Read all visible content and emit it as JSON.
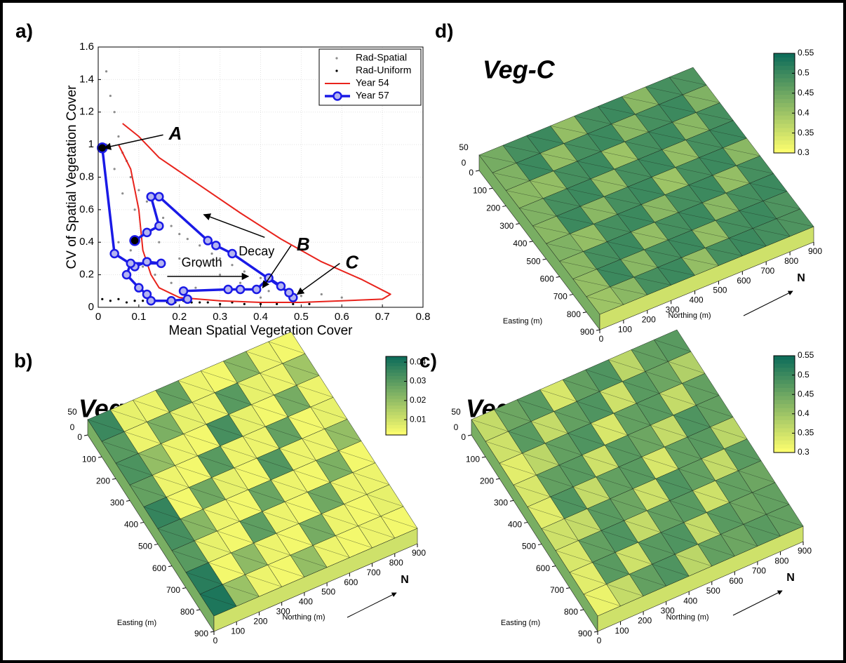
{
  "chart_data": [
    {
      "type": "line",
      "panel_label": "a)",
      "xlabel": "Mean Spatial Vegetation Cover",
      "ylabel": "CV of Spatial Vegetation Cover",
      "xlim": [
        0,
        0.8
      ],
      "xticks": [
        0,
        0.1,
        0.2,
        0.3,
        0.4,
        0.5,
        0.6,
        0.7,
        0.8
      ],
      "ylim": [
        0,
        1.6
      ],
      "yticks": [
        0,
        0.2,
        0.4,
        0.6,
        0.8,
        1,
        1.2,
        1.4,
        1.6
      ],
      "grid": true,
      "legend": "upper right",
      "series": [
        {
          "name": "Rad-Spatial",
          "color": "#8c8c8c",
          "style": "dots",
          "x": [
            0.02,
            0.03,
            0.04,
            0.05,
            0.06,
            0.07,
            0.08,
            0.1,
            0.12,
            0.14,
            0.16,
            0.18,
            0.2,
            0.22,
            0.25,
            0.28,
            0.3,
            0.33,
            0.36,
            0.4,
            0.45,
            0.5,
            0.55,
            0.6,
            0.02,
            0.04,
            0.06,
            0.09,
            0.12,
            0.15,
            0.2,
            0.25,
            0.3,
            0.35,
            0.42,
            0.5,
            0.03,
            0.05,
            0.08,
            0.11,
            0.14,
            0.18,
            0.24,
            0.32,
            0.4
          ],
          "values": [
            1.45,
            1.3,
            1.2,
            1.05,
            0.95,
            0.9,
            0.8,
            0.72,
            0.65,
            0.6,
            0.55,
            0.5,
            0.45,
            0.42,
            0.38,
            0.33,
            0.3,
            0.26,
            0.22,
            0.18,
            0.14,
            0.1,
            0.08,
            0.06,
            1.0,
            0.85,
            0.7,
            0.6,
            0.45,
            0.4,
            0.3,
            0.25,
            0.2,
            0.15,
            0.1,
            0.07,
            0.55,
            0.4,
            0.35,
            0.25,
            0.2,
            0.15,
            0.12,
            0.1,
            0.06
          ]
        },
        {
          "name": "Rad-Uniform",
          "color": "#000000",
          "style": "dots",
          "x": [
            0.01,
            0.03,
            0.05,
            0.07,
            0.09,
            0.11,
            0.13,
            0.15,
            0.17,
            0.19,
            0.21,
            0.23,
            0.25,
            0.27,
            0.3,
            0.33,
            0.36,
            0.4,
            0.44,
            0.48,
            0.52
          ],
          "values": [
            0.05,
            0.04,
            0.05,
            0.03,
            0.04,
            0.04,
            0.03,
            0.04,
            0.03,
            0.03,
            0.04,
            0.03,
            0.03,
            0.03,
            0.02,
            0.03,
            0.02,
            0.02,
            0.02,
            0.02,
            0.02
          ]
        },
        {
          "name": "Year 54",
          "color": "#e8231c",
          "style": "line",
          "x": [
            0.06,
            0.1,
            0.15,
            0.25,
            0.35,
            0.45,
            0.55,
            0.65,
            0.72,
            0.7,
            0.6,
            0.5,
            0.4,
            0.3,
            0.2,
            0.15,
            0.13,
            0.11,
            0.1,
            0.08,
            0.05
          ],
          "values": [
            1.13,
            1.05,
            0.92,
            0.75,
            0.58,
            0.42,
            0.28,
            0.17,
            0.08,
            0.05,
            0.04,
            0.03,
            0.03,
            0.04,
            0.06,
            0.12,
            0.2,
            0.35,
            0.6,
            0.85,
            1.0
          ]
        },
        {
          "name": "Year 57",
          "color": "#1a1ae6",
          "marker_fill": "#b4b4f0",
          "endpoint_fill": "#000000",
          "style": "line-markers",
          "x": [
            0.01,
            0.04,
            0.09,
            0.12,
            0.155,
            0.08,
            0.07,
            0.1,
            0.12,
            0.13,
            0.18,
            0.22,
            0.21,
            0.32,
            0.35,
            0.39,
            0.42,
            0.45,
            0.48,
            0.47,
            0.33,
            0.29,
            0.27,
            0.15,
            0.13,
            0.15,
            0.12,
            0.09
          ],
          "values": [
            0.98,
            0.33,
            0.25,
            0.28,
            0.27,
            0.27,
            0.2,
            0.12,
            0.08,
            0.04,
            0.04,
            0.05,
            0.1,
            0.11,
            0.11,
            0.11,
            0.18,
            0.13,
            0.06,
            0.09,
            0.33,
            0.38,
            0.41,
            0.68,
            0.68,
            0.5,
            0.46,
            0.41
          ]
        }
      ],
      "annotations": [
        "A",
        "B",
        "C",
        "Decay",
        "Growth"
      ]
    },
    {
      "type": "surface",
      "panel_label": "b)",
      "title": "Veg-A",
      "xlabel": "Easting (m)",
      "ylabel": "Northing (m)",
      "xlim": [
        0,
        900
      ],
      "xticks": [
        0,
        100,
        200,
        300,
        400,
        500,
        600,
        700,
        800,
        900
      ],
      "ylim": [
        0,
        900
      ],
      "yticks": [
        0,
        100,
        200,
        300,
        400,
        500,
        600,
        700,
        800,
        900
      ],
      "zlim": [
        0,
        50
      ],
      "zticks": [
        0,
        50
      ],
      "north_label": "N",
      "clim": [
        0.002,
        0.043
      ],
      "cticks": [
        0.01,
        0.02,
        0.03,
        0.04
      ],
      "colors": [
        "#ffff6e",
        "#0b6b5a"
      ],
      "z": [
        [
          0.035,
          0.006,
          0.005,
          0.028,
          0.005,
          0.004,
          0.022,
          0.005,
          0.004
        ],
        [
          0.03,
          0.005,
          0.024,
          0.006,
          0.005,
          0.03,
          0.006,
          0.005,
          0.018
        ],
        [
          0.032,
          0.02,
          0.005,
          0.004,
          0.033,
          0.006,
          0.004,
          0.025,
          0.005
        ],
        [
          0.028,
          0.005,
          0.004,
          0.03,
          0.005,
          0.005,
          0.028,
          0.004,
          0.006
        ],
        [
          0.036,
          0.004,
          0.026,
          0.006,
          0.004,
          0.031,
          0.005,
          0.005,
          0.02
        ],
        [
          0.033,
          0.022,
          0.005,
          0.004,
          0.027,
          0.005,
          0.004,
          0.024,
          0.004
        ],
        [
          0.03,
          0.006,
          0.004,
          0.029,
          0.005,
          0.004,
          0.026,
          0.005,
          0.005
        ],
        [
          0.038,
          0.004,
          0.021,
          0.005,
          0.004,
          0.025,
          0.005,
          0.004,
          0.006
        ],
        [
          0.04,
          0.019,
          0.005,
          0.004,
          0.02,
          0.005,
          0.004,
          0.005,
          0.004
        ]
      ]
    },
    {
      "type": "surface",
      "panel_label": "c)",
      "title": "Veg-B",
      "xlabel": "Easting (m)",
      "ylabel": "Northing (m)",
      "xlim": [
        0,
        900
      ],
      "xticks": [
        0,
        100,
        200,
        300,
        400,
        500,
        600,
        700,
        800,
        900
      ],
      "ylim": [
        0,
        900
      ],
      "yticks": [
        0,
        100,
        200,
        300,
        400,
        500,
        600,
        700,
        800,
        900
      ],
      "zlim": [
        0,
        50
      ],
      "zticks": [
        0,
        50
      ],
      "north_label": "N",
      "clim": [
        0.3,
        0.55
      ],
      "cticks": [
        0.3,
        0.35,
        0.4,
        0.45,
        0.5,
        0.55
      ],
      "colors": [
        "#ffff6e",
        "#0b6b5a"
      ],
      "z": [
        [
          0.36,
          0.45,
          0.47,
          0.34,
          0.46,
          0.48,
          0.37,
          0.46,
          0.47
        ],
        [
          0.35,
          0.47,
          0.36,
          0.46,
          0.48,
          0.35,
          0.47,
          0.45,
          0.38
        ],
        [
          0.33,
          0.37,
          0.46,
          0.48,
          0.34,
          0.46,
          0.47,
          0.36,
          0.46
        ],
        [
          0.34,
          0.46,
          0.47,
          0.35,
          0.47,
          0.45,
          0.36,
          0.48,
          0.46
        ],
        [
          0.33,
          0.48,
          0.36,
          0.46,
          0.47,
          0.34,
          0.46,
          0.47,
          0.37
        ],
        [
          0.35,
          0.36,
          0.47,
          0.45,
          0.35,
          0.48,
          0.46,
          0.36,
          0.47
        ],
        [
          0.34,
          0.46,
          0.48,
          0.36,
          0.46,
          0.47,
          0.35,
          0.46,
          0.45
        ],
        [
          0.33,
          0.47,
          0.35,
          0.47,
          0.48,
          0.36,
          0.47,
          0.45,
          0.46
        ],
        [
          0.32,
          0.36,
          0.46,
          0.48,
          0.37,
          0.46,
          0.45,
          0.47,
          0.46
        ]
      ]
    },
    {
      "type": "surface",
      "panel_label": "d)",
      "title": "Veg-C",
      "xlabel": "Easting (m)",
      "ylabel": "Northing (m)",
      "xlim": [
        0,
        900
      ],
      "xticks": [
        0,
        100,
        200,
        300,
        400,
        500,
        600,
        700,
        800,
        900
      ],
      "ylim": [
        0,
        900
      ],
      "yticks": [
        0,
        100,
        200,
        300,
        400,
        500,
        600,
        700,
        800,
        900
      ],
      "zlim": [
        0,
        50
      ],
      "zticks": [
        0,
        50
      ],
      "north_label": "N",
      "clim": [
        0.3,
        0.55
      ],
      "cticks": [
        0.3,
        0.35,
        0.4,
        0.45,
        0.5,
        0.55
      ],
      "colors": [
        "#ffff6e",
        "#0b6b5a"
      ],
      "z": [
        [
          0.44,
          0.49,
          0.5,
          0.41,
          0.49,
          0.5,
          0.42,
          0.49,
          0.48
        ],
        [
          0.43,
          0.5,
          0.41,
          0.49,
          0.5,
          0.42,
          0.49,
          0.5,
          0.43
        ],
        [
          0.42,
          0.41,
          0.49,
          0.5,
          0.4,
          0.49,
          0.5,
          0.42,
          0.49
        ],
        [
          0.43,
          0.49,
          0.5,
          0.41,
          0.49,
          0.5,
          0.41,
          0.49,
          0.5
        ],
        [
          0.42,
          0.5,
          0.42,
          0.49,
          0.5,
          0.4,
          0.49,
          0.5,
          0.42
        ],
        [
          0.43,
          0.41,
          0.49,
          0.5,
          0.42,
          0.49,
          0.5,
          0.41,
          0.49
        ],
        [
          0.42,
          0.49,
          0.5,
          0.41,
          0.49,
          0.5,
          0.42,
          0.49,
          0.5
        ],
        [
          0.41,
          0.5,
          0.42,
          0.49,
          0.5,
          0.41,
          0.49,
          0.5,
          0.48
        ],
        [
          0.4,
          0.42,
          0.49,
          0.5,
          0.41,
          0.49,
          0.5,
          0.49,
          0.48
        ]
      ]
    }
  ]
}
